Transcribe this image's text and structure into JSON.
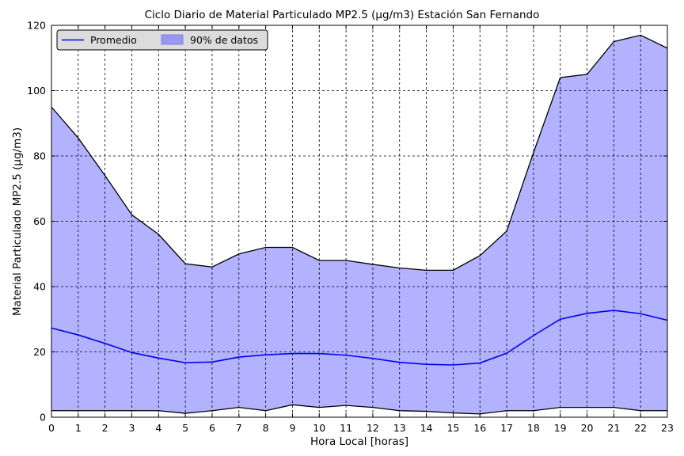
{
  "chart_data": {
    "type": "area",
    "title": "Ciclo Diario de Material Particulado MP2.5 (µg/m3) Estación San Fernando",
    "xlabel": "Hora Local [horas]",
    "ylabel": "Material Particulado MP2.5 (µg/m3)",
    "xlim": [
      0,
      23
    ],
    "ylim": [
      0,
      120
    ],
    "x": [
      0,
      1,
      2,
      3,
      4,
      5,
      6,
      7,
      8,
      9,
      10,
      11,
      12,
      13,
      14,
      15,
      16,
      17,
      18,
      19,
      20,
      21,
      22,
      23
    ],
    "x_ticks": [
      0,
      1,
      2,
      3,
      4,
      5,
      6,
      7,
      8,
      9,
      10,
      11,
      12,
      13,
      14,
      15,
      16,
      17,
      18,
      19,
      20,
      21,
      22,
      23
    ],
    "y_ticks": [
      0,
      20,
      40,
      60,
      80,
      100,
      120
    ],
    "grid": true,
    "legend_position": "top-left",
    "series": [
      {
        "name": "Promedio",
        "kind": "line",
        "color": "#0000ee",
        "values": [
          27.3,
          25.2,
          22.6,
          19.8,
          18.1,
          16.7,
          16.9,
          18.4,
          19.1,
          19.5,
          19.5,
          19.0,
          18.0,
          16.8,
          16.2,
          16.0,
          16.6,
          19.6,
          25.0,
          30.0,
          31.8,
          32.7,
          31.7,
          29.7
        ]
      },
      {
        "name": "90% de datos",
        "kind": "band",
        "color": "#b2b2ff",
        "upper": [
          95,
          85.5,
          74,
          62,
          56,
          47,
          46,
          50,
          52,
          52,
          48,
          48,
          46.8,
          45.7,
          45,
          45,
          49.5,
          57,
          81,
          104,
          105,
          115,
          117,
          113
        ],
        "lower": [
          2,
          2,
          2,
          2,
          2,
          1.2,
          2,
          3,
          2,
          3.8,
          3,
          3.6,
          3,
          2,
          1.8,
          1.3,
          1,
          2,
          2,
          3,
          3,
          3,
          2,
          2
        ]
      }
    ]
  }
}
